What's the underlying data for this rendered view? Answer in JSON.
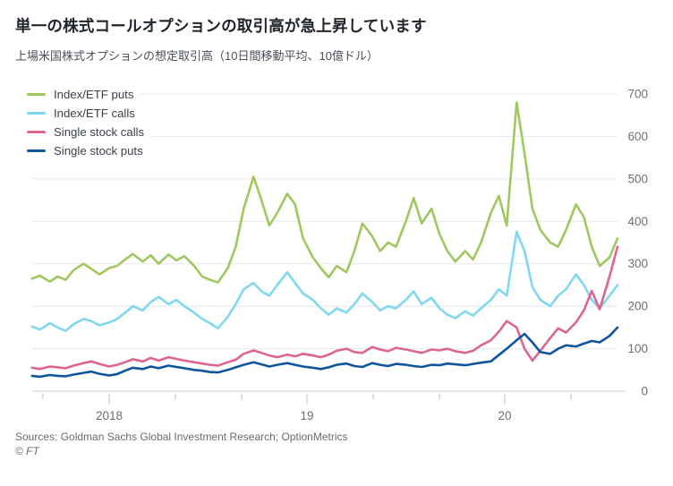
{
  "footer": {
    "sources": "Sources: Goldman Sachs Global Investment Research; OptionMetrics",
    "copyright": "© FT"
  },
  "chart_data": {
    "type": "line",
    "title": "単一の株式コールオプションの取引高が急上昇しています",
    "subtitle": "上場米国株式オプションの想定取引高（10日間移動平均、10億ドル）",
    "xlabel": "",
    "ylabel": "10億ドル",
    "ylim": [
      0,
      700
    ],
    "xlim": [
      2017.55,
      2020.65
    ],
    "grid": "horizontal",
    "legend_position": "top-left",
    "y_ticks": [
      0,
      100,
      200,
      300,
      400,
      500,
      600,
      700
    ],
    "x_ticks": [
      {
        "pos": 2017.665,
        "label": ""
      },
      {
        "pos": 2018.0,
        "label": "2018"
      },
      {
        "pos": 2018.335,
        "label": ""
      },
      {
        "pos": 2018.67,
        "label": ""
      },
      {
        "pos": 2019.0,
        "label": "19"
      },
      {
        "pos": 2019.335,
        "label": ""
      },
      {
        "pos": 2019.67,
        "label": ""
      },
      {
        "pos": 2020.0,
        "label": "20"
      },
      {
        "pos": 2020.335,
        "label": ""
      }
    ],
    "layout": {
      "gridline_color": "#e3e8ee",
      "baseline_color": "#c9d1d9",
      "tick_color": "#b9c3cd",
      "axis_text_color": "#6b7077",
      "background": "#ffffff"
    },
    "x": [
      2017.61,
      2017.65,
      2017.7,
      2017.74,
      2017.78,
      2017.82,
      2017.87,
      2017.91,
      2017.95,
      2018.0,
      2018.04,
      2018.08,
      2018.12,
      2018.17,
      2018.21,
      2018.25,
      2018.3,
      2018.34,
      2018.38,
      2018.43,
      2018.47,
      2018.51,
      2018.55,
      2018.6,
      2018.64,
      2018.68,
      2018.73,
      2018.77,
      2018.81,
      2018.85,
      2018.9,
      2018.94,
      2018.98,
      2019.03,
      2019.07,
      2019.11,
      2019.15,
      2019.2,
      2019.24,
      2019.28,
      2019.33,
      2019.37,
      2019.41,
      2019.45,
      2019.5,
      2019.54,
      2019.58,
      2019.63,
      2019.67,
      2019.71,
      2019.75,
      2019.8,
      2019.84,
      2019.88,
      2019.93,
      2019.97,
      2020.01,
      2020.06,
      2020.1,
      2020.14,
      2020.18,
      2020.23,
      2020.27,
      2020.31,
      2020.36,
      2020.4,
      2020.44,
      2020.48,
      2020.53,
      2020.57
    ],
    "series": [
      {
        "name": "Index/ETF puts",
        "color": "#a1c75f",
        "values": [
          265,
          272,
          258,
          270,
          262,
          285,
          300,
          288,
          275,
          290,
          295,
          310,
          323,
          305,
          320,
          300,
          322,
          308,
          318,
          295,
          270,
          262,
          256,
          290,
          340,
          430,
          505,
          450,
          390,
          420,
          465,
          440,
          360,
          315,
          290,
          268,
          295,
          280,
          330,
          395,
          365,
          330,
          350,
          340,
          400,
          455,
          395,
          430,
          370,
          330,
          305,
          330,
          310,
          350,
          420,
          460,
          390,
          680,
          560,
          430,
          380,
          350,
          340,
          380,
          440,
          410,
          340,
          295,
          315,
          360
        ]
      },
      {
        "name": "Index/ETF calls",
        "color": "#7fd8f0",
        "values": [
          152,
          145,
          160,
          150,
          142,
          158,
          170,
          165,
          155,
          162,
          170,
          185,
          200,
          190,
          210,
          222,
          205,
          215,
          200,
          185,
          170,
          160,
          148,
          175,
          205,
          240,
          255,
          235,
          225,
          250,
          280,
          255,
          230,
          215,
          195,
          180,
          195,
          185,
          205,
          230,
          210,
          190,
          200,
          195,
          215,
          235,
          205,
          220,
          195,
          180,
          172,
          188,
          178,
          195,
          215,
          240,
          225,
          375,
          330,
          245,
          215,
          200,
          225,
          240,
          275,
          250,
          215,
          195,
          225,
          250
        ]
      },
      {
        "name": "Single stock calls",
        "color": "#dd6590",
        "values": [
          55,
          52,
          58,
          56,
          54,
          60,
          66,
          70,
          64,
          58,
          62,
          68,
          75,
          70,
          78,
          72,
          80,
          76,
          72,
          68,
          65,
          62,
          60,
          68,
          74,
          88,
          96,
          90,
          84,
          80,
          86,
          82,
          88,
          84,
          80,
          86,
          95,
          100,
          92,
          90,
          104,
          98,
          94,
          102,
          98,
          94,
          90,
          98,
          96,
          100,
          94,
          90,
          95,
          108,
          120,
          140,
          165,
          150,
          100,
          72,
          95,
          125,
          148,
          138,
          162,
          190,
          236,
          193,
          270,
          340
        ]
      },
      {
        "name": "Single stock puts",
        "color": "#0f559d",
        "values": [
          36,
          34,
          38,
          36,
          35,
          39,
          43,
          46,
          41,
          37,
          40,
          48,
          55,
          52,
          58,
          54,
          60,
          57,
          54,
          50,
          48,
          45,
          44,
          50,
          56,
          62,
          68,
          63,
          58,
          62,
          66,
          62,
          58,
          55,
          52,
          56,
          62,
          65,
          59,
          57,
          66,
          62,
          59,
          64,
          62,
          59,
          57,
          62,
          61,
          65,
          63,
          61,
          64,
          67,
          70,
          85,
          100,
          120,
          135,
          115,
          92,
          88,
          100,
          108,
          105,
          112,
          118,
          115,
          130,
          150
        ]
      }
    ]
  }
}
